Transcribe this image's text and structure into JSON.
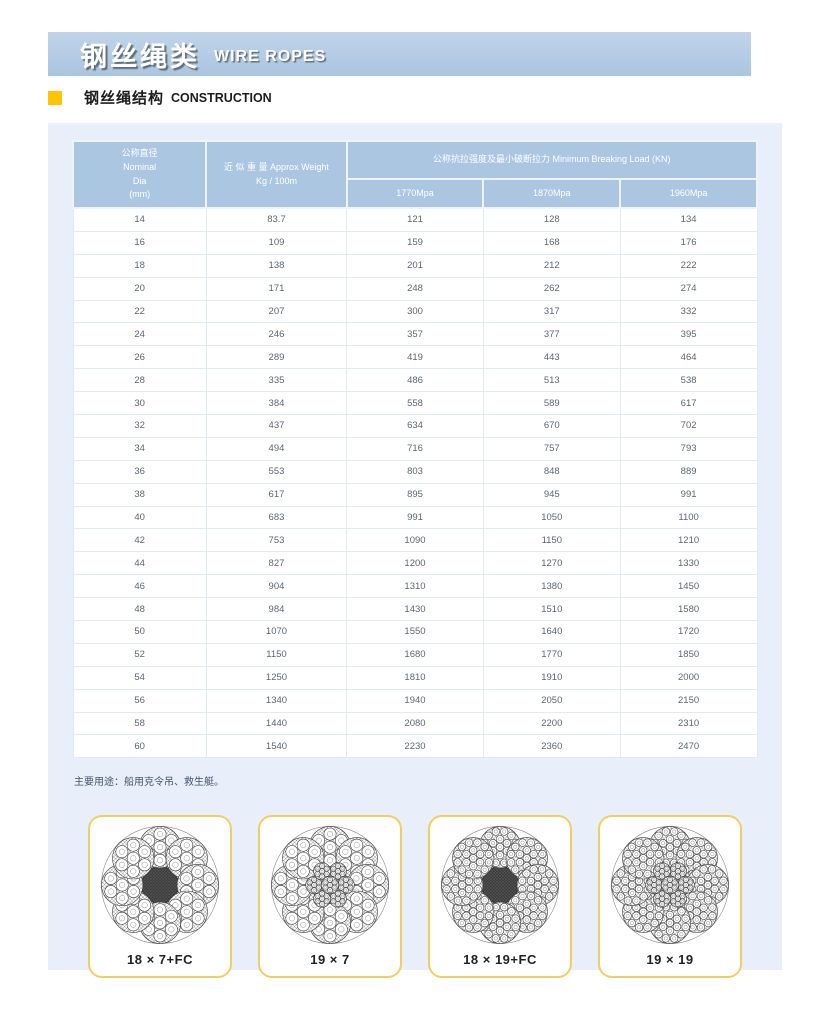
{
  "header": {
    "title_zh": "钢丝绳类",
    "title_en": "WIRE ROPES"
  },
  "section": {
    "title_zh": "钢丝绳结构",
    "title_en": "CONSTRUCTION"
  },
  "colors": {
    "banner_blue": "#aac5df",
    "table_header_blue": "#abc6e1",
    "panel_blue": "#e9effa",
    "accent_yellow": "#ffc600",
    "card_border_yellow": "#f0ce66"
  },
  "table": {
    "col1_header": "公称直径\nNominal\nDia\n(mm)",
    "col2_header": "近 似 重 量 Approx Weight\nKg / 100m",
    "group_header": "公称抗拉强度及最小破断拉力 Minimum Breaking Load (KN)",
    "sub_headers": [
      "1770Mpa",
      "1870Mpa",
      "1960Mpa"
    ],
    "rows": [
      [
        "14",
        "83.7",
        "121",
        "128",
        "134"
      ],
      [
        "16",
        "109",
        "159",
        "168",
        "176"
      ],
      [
        "18",
        "138",
        "201",
        "212",
        "222"
      ],
      [
        "20",
        "171",
        "248",
        "262",
        "274"
      ],
      [
        "22",
        "207",
        "300",
        "317",
        "332"
      ],
      [
        "24",
        "246",
        "357",
        "377",
        "395"
      ],
      [
        "26",
        "289",
        "419",
        "443",
        "464"
      ],
      [
        "28",
        "335",
        "486",
        "513",
        "538"
      ],
      [
        "30",
        "384",
        "558",
        "589",
        "617"
      ],
      [
        "32",
        "437",
        "634",
        "670",
        "702"
      ],
      [
        "34",
        "494",
        "716",
        "757",
        "793"
      ],
      [
        "36",
        "553",
        "803",
        "848",
        "889"
      ],
      [
        "38",
        "617",
        "895",
        "945",
        "991"
      ],
      [
        "40",
        "683",
        "991",
        "1050",
        "1100"
      ],
      [
        "42",
        "753",
        "1090",
        "1150",
        "1210"
      ],
      [
        "44",
        "827",
        "1200",
        "1270",
        "1330"
      ],
      [
        "46",
        "904",
        "1310",
        "1380",
        "1450"
      ],
      [
        "48",
        "984",
        "1430",
        "1510",
        "1580"
      ],
      [
        "50",
        "1070",
        "1550",
        "1640",
        "1720"
      ],
      [
        "52",
        "1150",
        "1680",
        "1770",
        "1850"
      ],
      [
        "54",
        "1250",
        "1810",
        "1910",
        "2000"
      ],
      [
        "56",
        "1340",
        "1940",
        "2050",
        "2150"
      ],
      [
        "58",
        "1440",
        "2080",
        "2200",
        "2310"
      ],
      [
        "60",
        "1540",
        "2230",
        "2360",
        "2470"
      ]
    ]
  },
  "note": "主要用途：船用克令吊、救生艇。",
  "diagrams": [
    {
      "label": "18 × 7+FC",
      "core": "fc",
      "wires": 7
    },
    {
      "label": "19 × 7",
      "core": "wire",
      "wires": 7
    },
    {
      "label": "18 × 19+FC",
      "core": "fc",
      "wires": 19
    },
    {
      "label": "19 × 19",
      "core": "wire",
      "wires": 19
    }
  ]
}
